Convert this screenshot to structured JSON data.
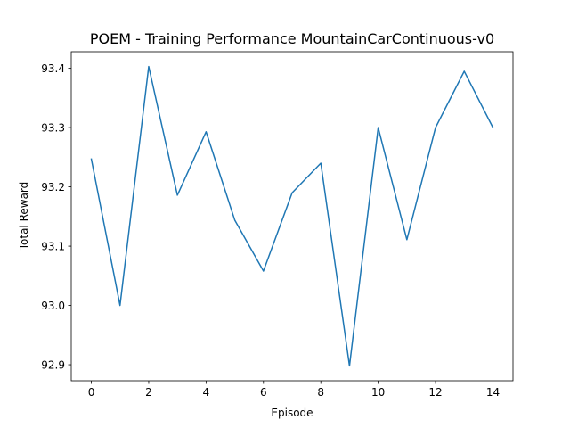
{
  "chart_data": {
    "type": "line",
    "title": "POEM - Training Performance MountainCarContinuous-v0",
    "xlabel": "Episode",
    "ylabel": "Total Reward",
    "x": [
      0,
      1,
      2,
      3,
      4,
      5,
      6,
      7,
      8,
      9,
      10,
      11,
      12,
      13,
      14
    ],
    "series": [
      {
        "values": [
          93.247,
          93.0,
          93.403,
          93.186,
          93.293,
          93.144,
          93.058,
          93.19,
          93.24,
          92.898,
          93.3,
          93.111,
          93.3,
          93.395,
          93.3
        ],
        "color": "#1f77b4"
      }
    ],
    "xticks": [
      0,
      2,
      4,
      6,
      8,
      10,
      12,
      14
    ],
    "yticks": [
      92.9,
      93.0,
      93.1,
      93.2,
      93.3,
      93.4
    ],
    "xlim": [
      -0.7,
      14.7
    ],
    "ylim": [
      92.873,
      93.428
    ],
    "grid": false,
    "legend": false
  }
}
